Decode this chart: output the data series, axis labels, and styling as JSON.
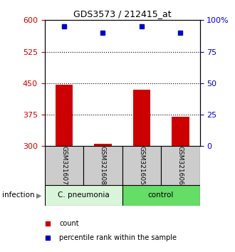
{
  "title": "GDS3573 / 212415_at",
  "samples": [
    "GSM321607",
    "GSM321608",
    "GSM321605",
    "GSM321606"
  ],
  "counts": [
    447,
    305,
    435,
    370
  ],
  "percentiles": [
    95,
    90,
    95,
    90
  ],
  "ylim_left": [
    300,
    600
  ],
  "ylim_right": [
    0,
    100
  ],
  "yticks_left": [
    300,
    375,
    450,
    525,
    600
  ],
  "yticks_right": [
    0,
    25,
    50,
    75,
    100
  ],
  "ytick_labels_right": [
    "0",
    "25",
    "50",
    "75",
    "100%"
  ],
  "bar_color": "#cc0000",
  "dot_color": "#0000cc",
  "group_labels": [
    "C. pneumonia",
    "control"
  ],
  "group_colors": [
    "#d9f5d9",
    "#66dd66"
  ],
  "group_ranges": [
    [
      0,
      2
    ],
    [
      2,
      4
    ]
  ],
  "label_color_left": "#cc0000",
  "label_color_right": "#0000cc",
  "sample_box_color": "#cccccc",
  "infection_label": "infection",
  "legend_count_label": "count",
  "legend_pct_label": "percentile rank within the sample",
  "dotted_yticks": [
    375,
    450,
    525
  ]
}
